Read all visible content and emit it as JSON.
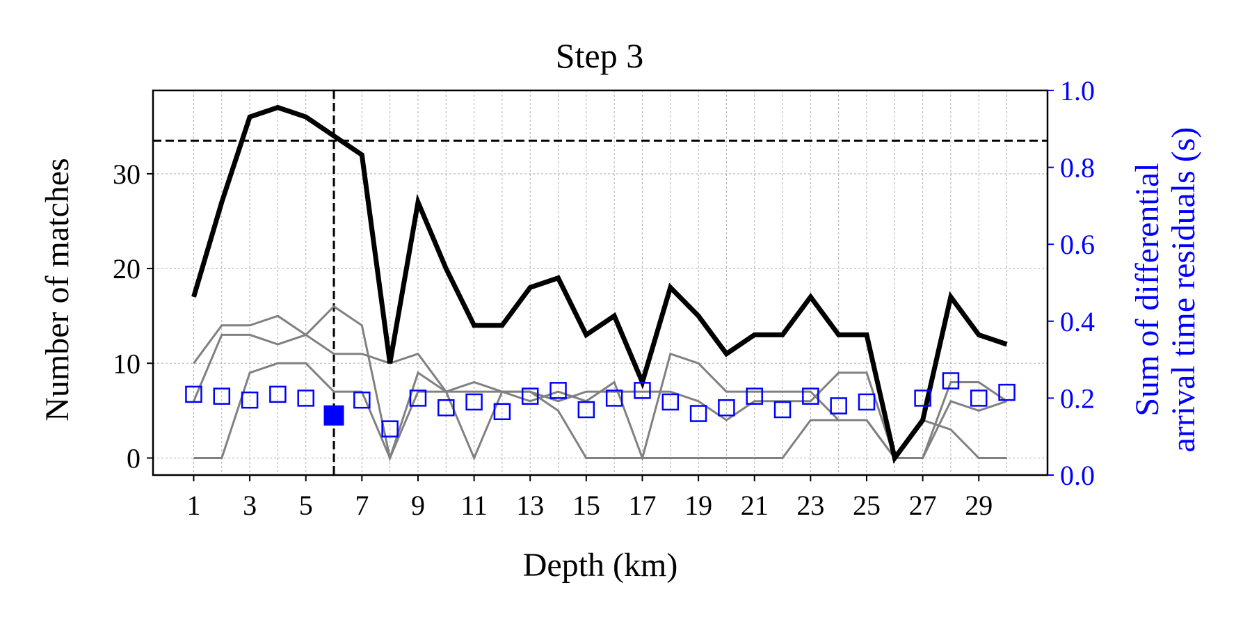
{
  "chart_data": {
    "type": "line",
    "title": "Step 3",
    "xlabel": "Depth (km)",
    "ylabel": "Number of matches",
    "ylabel_right": [
      "Sum of differential",
      "arrival time residuals (s)"
    ],
    "xlim": [
      -0.45,
      31.45
    ],
    "ylim": [
      -1.8,
      38.8
    ],
    "ylim_right": [
      0.0,
      1.0
    ],
    "x_ticks": [
      1,
      3,
      5,
      7,
      9,
      11,
      13,
      15,
      17,
      19,
      21,
      23,
      25,
      27,
      29
    ],
    "x_tick_labels": [
      "1",
      "3",
      "5",
      "7",
      "9",
      "11",
      "13",
      "15",
      "17",
      "19",
      "21",
      "23",
      "25",
      "27",
      "29"
    ],
    "x_minor_grid": [
      1,
      2,
      3,
      4,
      5,
      6,
      7,
      8,
      9,
      10,
      11,
      12,
      13,
      14,
      15,
      16,
      17,
      18,
      19,
      20,
      21,
      22,
      23,
      24,
      25,
      26,
      27,
      28,
      29,
      30
    ],
    "y_ticks": [
      0,
      10,
      20,
      30
    ],
    "y_tick_labels": [
      "0",
      "10",
      "20",
      "30"
    ],
    "y_right_ticks": [
      0.0,
      0.2,
      0.4,
      0.6,
      0.8,
      1.0
    ],
    "y_right_tick_labels": [
      "0.0",
      "0.2",
      "0.4",
      "0.6",
      "0.8",
      "1.0"
    ],
    "grid": true,
    "x": [
      1,
      2,
      3,
      4,
      5,
      6,
      7,
      8,
      9,
      10,
      11,
      12,
      13,
      14,
      15,
      16,
      17,
      18,
      19,
      20,
      21,
      22,
      23,
      24,
      25,
      26,
      27,
      28,
      29,
      30
    ],
    "series": [
      {
        "role": "total",
        "color": "#000000",
        "values": [
          17,
          27,
          36,
          37,
          36,
          34,
          32,
          10,
          27,
          20,
          14,
          14,
          18,
          19,
          13,
          15,
          8,
          18,
          15,
          11,
          13,
          13,
          17,
          13,
          13,
          0,
          4,
          17,
          13,
          12
        ]
      },
      {
        "role": "component",
        "color": "#808080",
        "values": [
          10,
          14,
          14,
          15,
          13,
          16,
          14,
          0,
          9,
          7,
          8,
          7,
          7,
          6,
          7,
          7,
          7,
          7,
          6,
          4,
          6,
          6,
          6,
          9,
          9,
          0,
          4,
          3,
          0,
          0
        ]
      },
      {
        "role": "component",
        "color": "#808080",
        "values": [
          6,
          13,
          13,
          12,
          13,
          11,
          11,
          10,
          11,
          7,
          7,
          7,
          6,
          7,
          6,
          8,
          0,
          11,
          10,
          7,
          7,
          7,
          7,
          4,
          4,
          0,
          0,
          8,
          8,
          6
        ]
      },
      {
        "role": "component",
        "color": "#808080",
        "values": [
          0,
          0,
          9,
          10,
          10,
          7,
          7,
          0,
          7,
          7,
          0,
          7,
          7,
          5,
          0,
          0,
          0,
          0,
          0,
          0,
          0,
          0,
          4,
          4,
          4,
          0,
          0,
          6,
          5,
          6
        ]
      },
      {
        "role": "residuals",
        "axis": "right",
        "marker": "open-square",
        "color": "#0000ff",
        "values": [
          0.21,
          0.205,
          0.195,
          0.21,
          0.2,
          null,
          0.195,
          0.12,
          0.2,
          0.175,
          0.19,
          0.165,
          0.205,
          0.22,
          0.17,
          0.2,
          0.22,
          0.19,
          0.16,
          0.175,
          0.205,
          0.17,
          0.205,
          0.18,
          0.19,
          null,
          0.2,
          0.245,
          0.2,
          0.215
        ]
      }
    ],
    "highlight_point": {
      "x": 6,
      "y_right": 0.155,
      "marker": "filled-square",
      "color": "#0000ff"
    },
    "threshold_line_y": 33.5,
    "selected_depth_x": 6,
    "colors": {
      "axis": "#000000",
      "right_axis": "#0000ff",
      "grid": "#b0b0b0",
      "component": "#808080"
    }
  }
}
